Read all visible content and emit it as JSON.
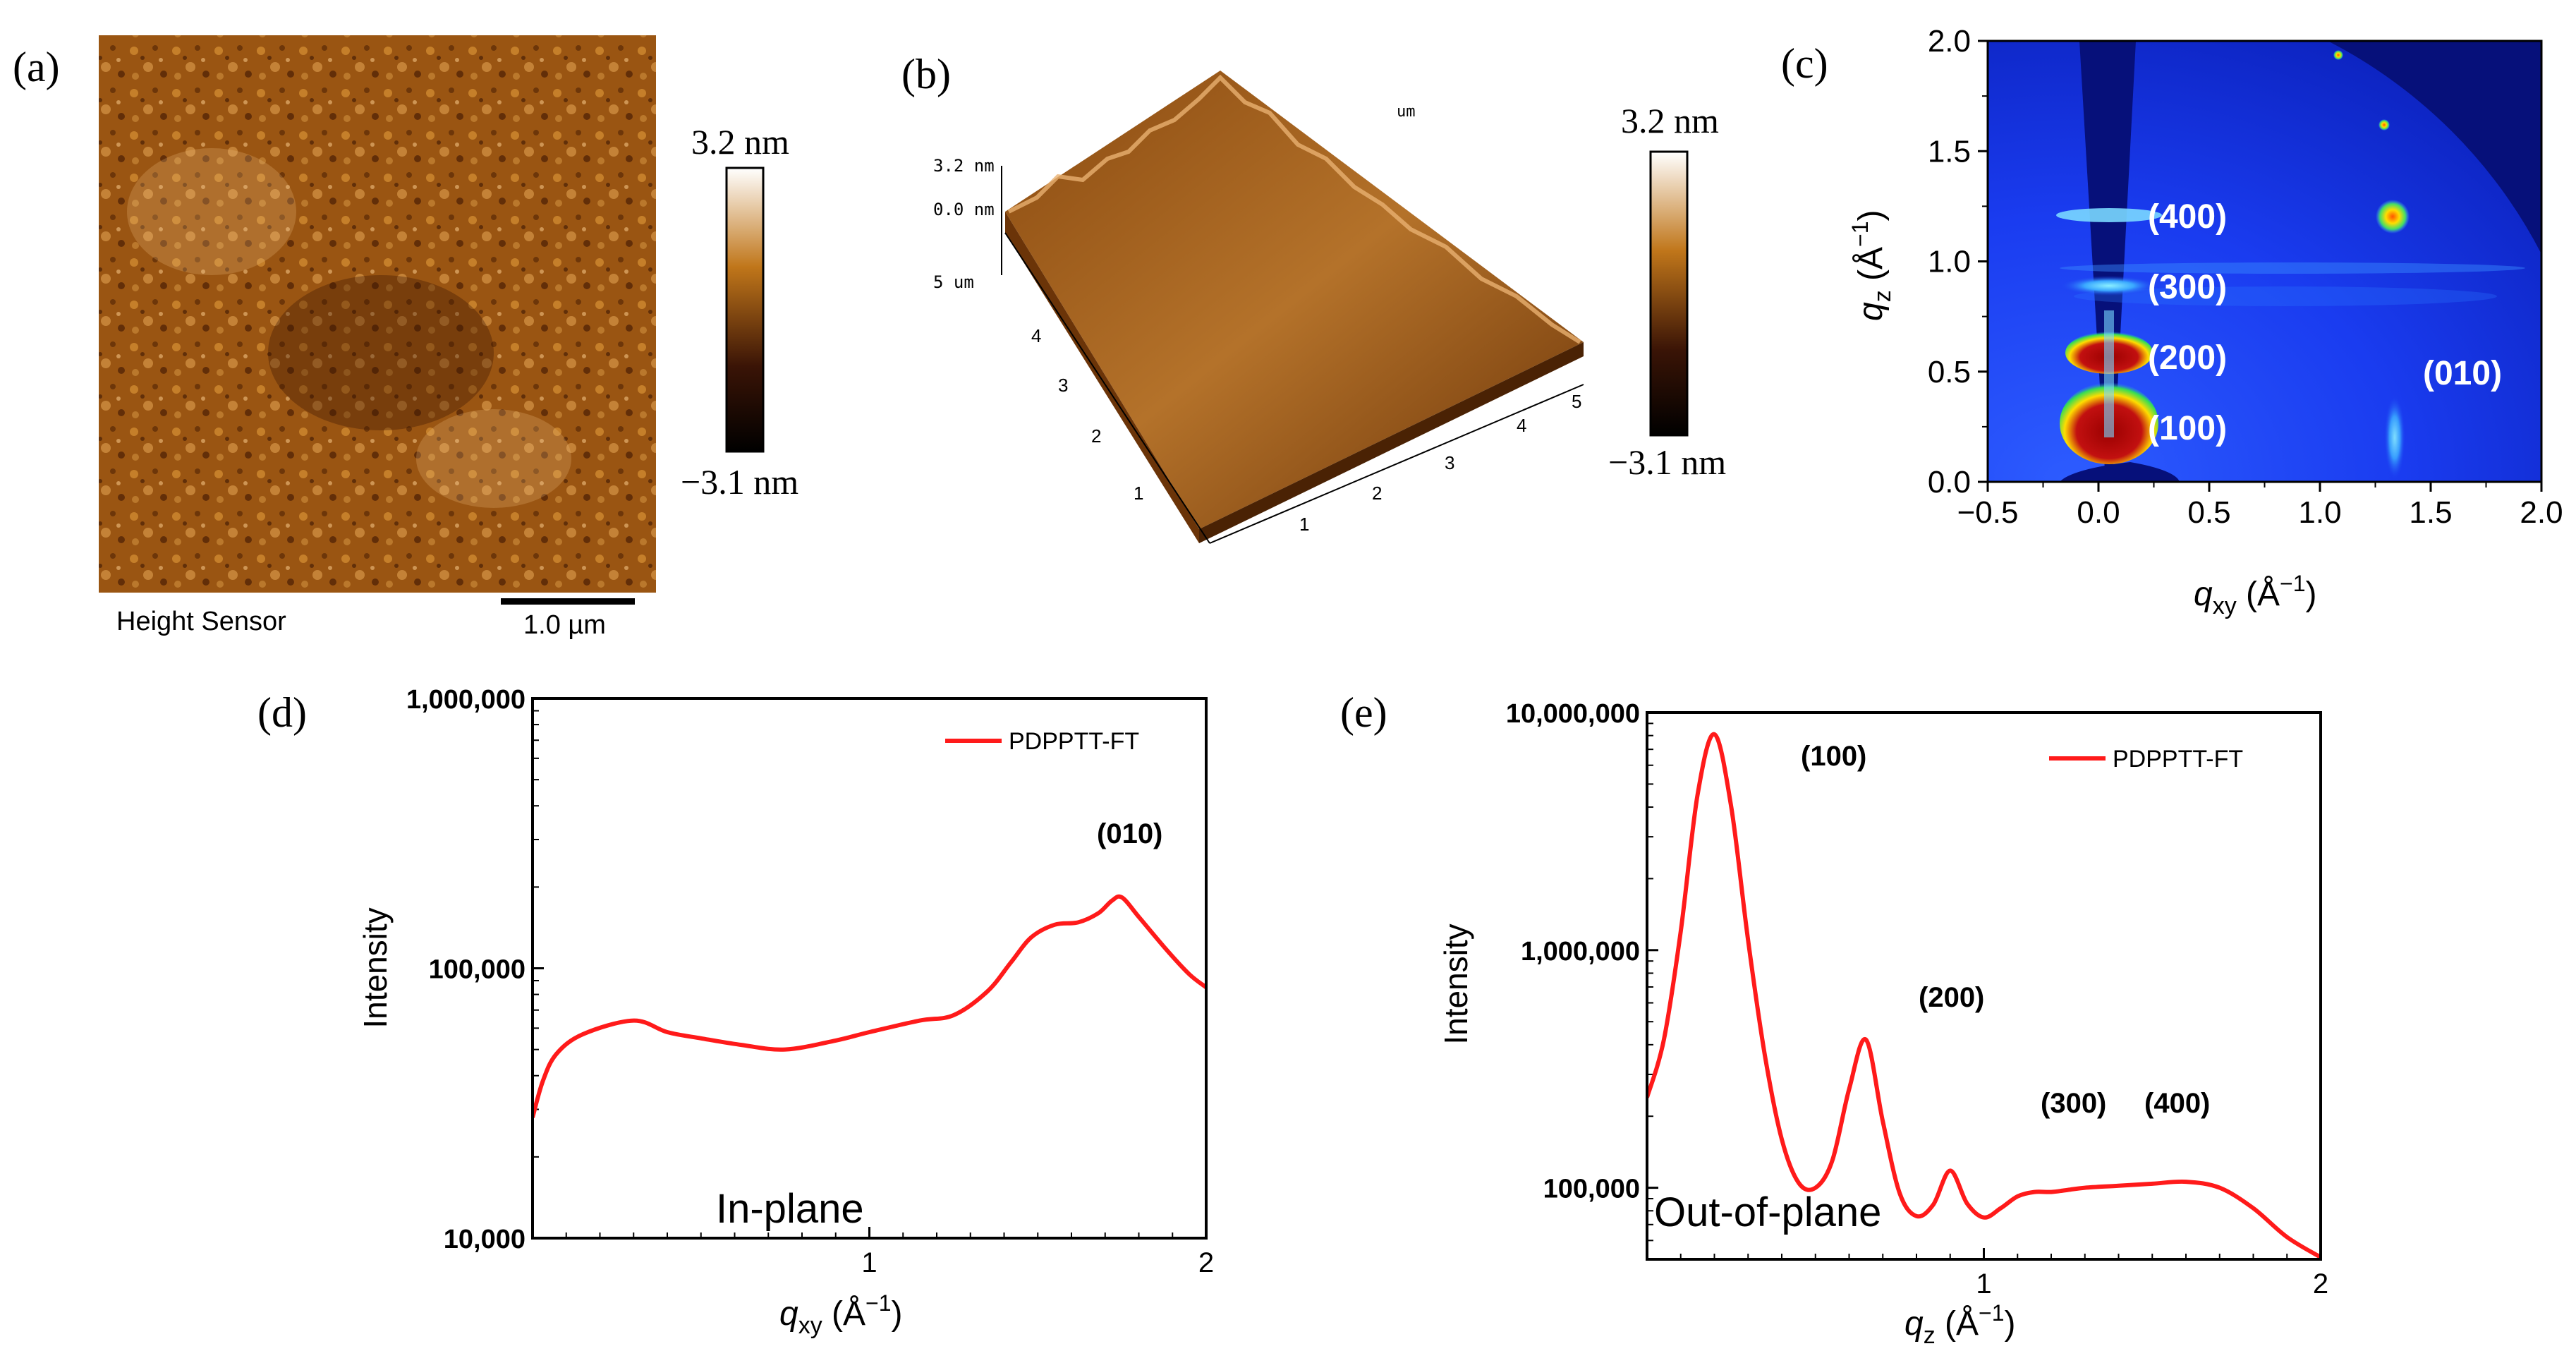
{
  "panel_labels": [
    "(a)",
    "(b)",
    "(c)",
    "(d)",
    "(e)"
  ],
  "colors": {
    "curve": "#ff1a1a",
    "afm_high": "#ffffff",
    "afm_mid": "#c0761a",
    "afm_low": "#000000",
    "giwaxs_bg": "#1a3cf0",
    "giwaxs_dark": "#06107a"
  },
  "panel_a": {
    "scale_max": "3.2 nm",
    "scale_min": "−3.1 nm",
    "caption": "Height Sensor",
    "scale_bar": "1.0 µm"
  },
  "panel_b": {
    "scale_max": "3.2 nm",
    "scale_min": "−3.1 nm",
    "z_top": "3.2 nm",
    "z_zero": "0.0 nm",
    "z_side": "5 um",
    "unit_um": "um",
    "y_ticks": [
      "1",
      "2",
      "3",
      "4"
    ],
    "x_ticks": [
      "1",
      "2",
      "3",
      "4",
      "5"
    ]
  },
  "panel_c": {
    "ylabel": "q",
    "ylabel_sub": "z",
    "ylabel_unit": " (Å",
    "ylabel_sup": "−1",
    "xlabel": "q",
    "xlabel_sub": "xy",
    "xlabel_unit": " (Å",
    "xlabel_sup": "−1",
    "close_paren": ")",
    "x_ticks": [
      "−0.5",
      "0.0",
      "0.5",
      "1.0",
      "1.5",
      "2.0"
    ],
    "y_ticks": [
      "0.0",
      "0.5",
      "1.0",
      "1.5",
      "2.0"
    ],
    "peaks": [
      "(100)",
      "(200)",
      "(300)",
      "(400)",
      "(010)"
    ]
  },
  "chart_data": [
    {
      "panel": "d",
      "type": "line",
      "title": "",
      "xlabel": "qxy (Å−1)",
      "ylabel": "Intensity",
      "yscale": "log",
      "xlim": [
        0,
        2
      ],
      "ylim": [
        10000,
        1000000
      ],
      "x_tick_labels": [
        "1",
        "2"
      ],
      "y_tick_labels": [
        "10,000",
        "100,000",
        "1,000,000"
      ],
      "legend": "PDPPTT-FT",
      "legend_position": "top-right",
      "annotations": [
        "(010)",
        "In-plane"
      ],
      "series": [
        {
          "name": "PDPPTT-FT",
          "x": [
            0.0,
            0.03,
            0.07,
            0.15,
            0.3,
            0.4,
            0.5,
            0.62,
            0.75,
            0.9,
            1.0,
            1.15,
            1.25,
            1.35,
            1.42,
            1.48,
            1.55,
            1.62,
            1.68,
            1.72,
            1.75,
            1.8,
            1.88,
            1.95,
            2.0
          ],
          "y": [
            28000,
            38000,
            48000,
            57000,
            64000,
            58000,
            55000,
            52000,
            50000,
            54000,
            58000,
            64000,
            67000,
            82000,
            105000,
            130000,
            145000,
            148000,
            160000,
            178000,
            183000,
            155000,
            118000,
            95000,
            85000
          ]
        }
      ]
    },
    {
      "panel": "e",
      "type": "line",
      "title": "",
      "xlabel": "qz (Å−1)",
      "ylabel": "Intensity",
      "yscale": "log",
      "xlim": [
        0,
        2
      ],
      "ylim": [
        50000,
        10000000
      ],
      "x_tick_labels": [
        "1",
        "2"
      ],
      "y_tick_labels": [
        "100,000",
        "1,000,000",
        "10,000,000"
      ],
      "legend": "PDPPTT-FT",
      "legend_position": "top-right",
      "annotations": [
        "(100)",
        "(200)",
        "(300)",
        "(400)",
        "Out-of-plane"
      ],
      "series": [
        {
          "name": "PDPPTT-FT",
          "x": [
            0.0,
            0.05,
            0.1,
            0.15,
            0.2,
            0.25,
            0.3,
            0.35,
            0.4,
            0.45,
            0.5,
            0.55,
            0.6,
            0.65,
            0.7,
            0.75,
            0.8,
            0.85,
            0.9,
            0.95,
            1.0,
            1.05,
            1.1,
            1.15,
            1.2,
            1.25,
            1.3,
            1.4,
            1.5,
            1.6,
            1.7,
            1.8,
            1.9,
            2.0
          ],
          "y": [
            240000,
            420000,
            1200000,
            4500000,
            8100000,
            4000000,
            1100000,
            360000,
            160000,
            105000,
            100000,
            130000,
            260000,
            420000,
            190000,
            95000,
            76000,
            85000,
            118000,
            86000,
            75000,
            82000,
            92000,
            96000,
            96000,
            98000,
            100000,
            102000,
            104000,
            106000,
            100000,
            82000,
            62000,
            51000
          ]
        }
      ]
    }
  ]
}
